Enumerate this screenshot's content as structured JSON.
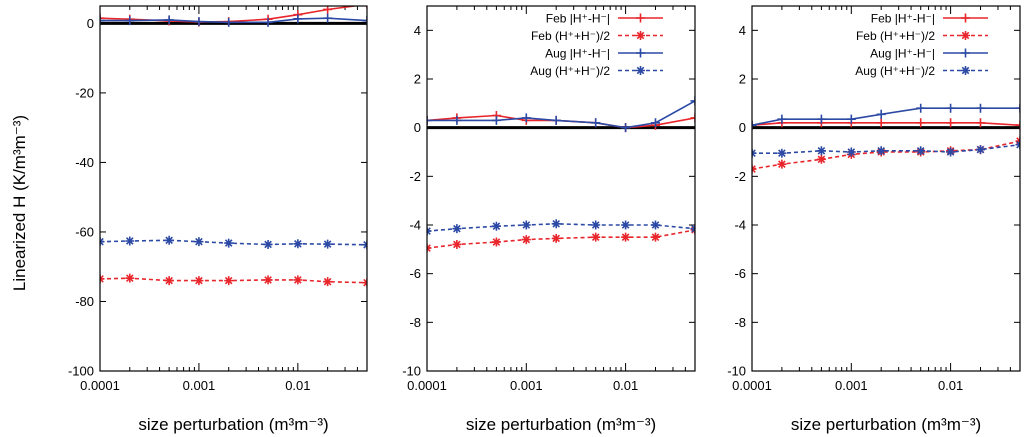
{
  "figure": {
    "ylabel": "Linearized H (K/m³m⁻³)",
    "xlabel": "size perturbation (m³m⁻³)"
  },
  "chart_data": [
    {
      "type": "line",
      "panel": "left",
      "x": [
        0.0001,
        0.0002,
        0.0005,
        0.001,
        0.002,
        0.005,
        0.01,
        0.02,
        0.05
      ],
      "xscale": "log",
      "xlim": [
        0.0001,
        0.05
      ],
      "ylim": [
        -100,
        5
      ],
      "xticks": [
        0.0001,
        0.001,
        0.01
      ],
      "xtick_labels": [
        "0.0001",
        "0.001",
        "0.01"
      ],
      "yticks": [
        -100,
        -80,
        -60,
        -40,
        -20,
        0
      ],
      "ytick_labels": [
        "-100",
        "-80",
        "-60",
        "-40",
        "-20",
        "0"
      ],
      "ylabel": "Linearized H (K/m³m⁻³)",
      "xlabel": "size perturbation (m³m⁻³)",
      "legend": false,
      "series": [
        {
          "name": "Feb |H⁺-H⁻|",
          "color": "#e8262b",
          "style": "solid",
          "marker": "plus",
          "values": [
            1.5,
            1.2,
            0.7,
            0.4,
            0.5,
            1.2,
            2.5,
            4.0,
            5.5
          ]
        },
        {
          "name": "Feb (H⁺+H⁻)/2",
          "color": "#e8262b",
          "style": "dashed",
          "marker": "star",
          "values": [
            -73.5,
            -73.3,
            -74.0,
            -74.0,
            -74.0,
            -73.8,
            -73.8,
            -74.3,
            -74.6
          ]
        },
        {
          "name": "Aug |H⁺-H⁻|",
          "color": "#2c4aa5",
          "style": "solid",
          "marker": "plus",
          "values": [
            0.8,
            0.8,
            1.0,
            0.5,
            0.3,
            0.3,
            1.3,
            1.5,
            0.8
          ]
        },
        {
          "name": "Aug (H⁺+H⁻)/2",
          "color": "#2c4aa5",
          "style": "dashed",
          "marker": "star",
          "values": [
            -62.8,
            -62.6,
            -62.4,
            -62.8,
            -63.2,
            -63.6,
            -63.4,
            -63.5,
            -63.7
          ]
        }
      ]
    },
    {
      "type": "line",
      "panel": "middle",
      "x": [
        0.0001,
        0.0002,
        0.0005,
        0.001,
        0.002,
        0.005,
        0.01,
        0.02,
        0.05
      ],
      "xscale": "log",
      "xlim": [
        0.0001,
        0.05
      ],
      "ylim": [
        -10,
        5
      ],
      "xticks": [
        0.0001,
        0.001,
        0.01
      ],
      "xtick_labels": [
        "0.0001",
        "0.001",
        "0.01"
      ],
      "yticks": [
        -10,
        -8,
        -6,
        -4,
        -2,
        0,
        2,
        4
      ],
      "ytick_labels": [
        "-10",
        "-8",
        "-6",
        "-4",
        "-2",
        "0",
        "2",
        "4"
      ],
      "xlabel": "size perturbation (m³m⁻³)",
      "legend": "top-right",
      "series": [
        {
          "name": "Feb |H⁺-H⁻|",
          "color": "#e8262b",
          "style": "solid",
          "marker": "plus",
          "values": [
            0.3,
            0.4,
            0.5,
            0.3,
            0.3,
            0.2,
            0.0,
            0.1,
            0.4
          ]
        },
        {
          "name": "Feb (H⁺+H⁻)/2",
          "color": "#e8262b",
          "style": "dashed",
          "marker": "star",
          "values": [
            -4.95,
            -4.8,
            -4.7,
            -4.6,
            -4.55,
            -4.5,
            -4.5,
            -4.5,
            -4.2
          ]
        },
        {
          "name": "Aug |H⁺-H⁻|",
          "color": "#2c4aa5",
          "style": "solid",
          "marker": "plus",
          "values": [
            0.3,
            0.3,
            0.3,
            0.4,
            0.3,
            0.2,
            0.0,
            0.2,
            1.1
          ]
        },
        {
          "name": "Aug (H⁺+H⁻)/2",
          "color": "#2c4aa5",
          "style": "dashed",
          "marker": "star",
          "values": [
            -4.25,
            -4.15,
            -4.05,
            -4.0,
            -3.95,
            -4.0,
            -4.0,
            -4.0,
            -4.15
          ]
        }
      ]
    },
    {
      "type": "line",
      "panel": "right",
      "x": [
        0.0001,
        0.0002,
        0.0005,
        0.001,
        0.002,
        0.005,
        0.01,
        0.02,
        0.05
      ],
      "xscale": "log",
      "xlim": [
        0.0001,
        0.05
      ],
      "ylim": [
        -10,
        5
      ],
      "xticks": [
        0.0001,
        0.001,
        0.01
      ],
      "xtick_labels": [
        "0.0001",
        "0.001",
        "0.01"
      ],
      "yticks": [
        -10,
        -8,
        -6,
        -4,
        -2,
        0,
        2,
        4
      ],
      "ytick_labels": [
        "-10",
        "-8",
        "-6",
        "-4",
        "-2",
        "0",
        "2",
        "4"
      ],
      "xlabel": "size perturbation (m³m⁻³)",
      "legend": "top-right",
      "series": [
        {
          "name": "Feb |H⁺-H⁻|",
          "color": "#e8262b",
          "style": "solid",
          "marker": "plus",
          "values": [
            0.1,
            0.2,
            0.2,
            0.2,
            0.2,
            0.2,
            0.2,
            0.2,
            0.1
          ]
        },
        {
          "name": "Feb (H⁺+H⁻)/2",
          "color": "#e8262b",
          "style": "dashed",
          "marker": "star",
          "values": [
            -1.7,
            -1.5,
            -1.3,
            -1.1,
            -1.0,
            -1.0,
            -0.95,
            -0.9,
            -0.55
          ]
        },
        {
          "name": "Aug |H⁺-H⁻|",
          "color": "#2c4aa5",
          "style": "solid",
          "marker": "plus",
          "values": [
            0.1,
            0.35,
            0.35,
            0.35,
            0.55,
            0.8,
            0.8,
            0.8,
            0.8
          ]
        },
        {
          "name": "Aug (H⁺+H⁻)/2",
          "color": "#2c4aa5",
          "style": "dashed",
          "marker": "star",
          "values": [
            -1.05,
            -1.05,
            -0.95,
            -1.0,
            -0.95,
            -0.95,
            -1.0,
            -0.9,
            -0.7
          ]
        }
      ]
    }
  ]
}
